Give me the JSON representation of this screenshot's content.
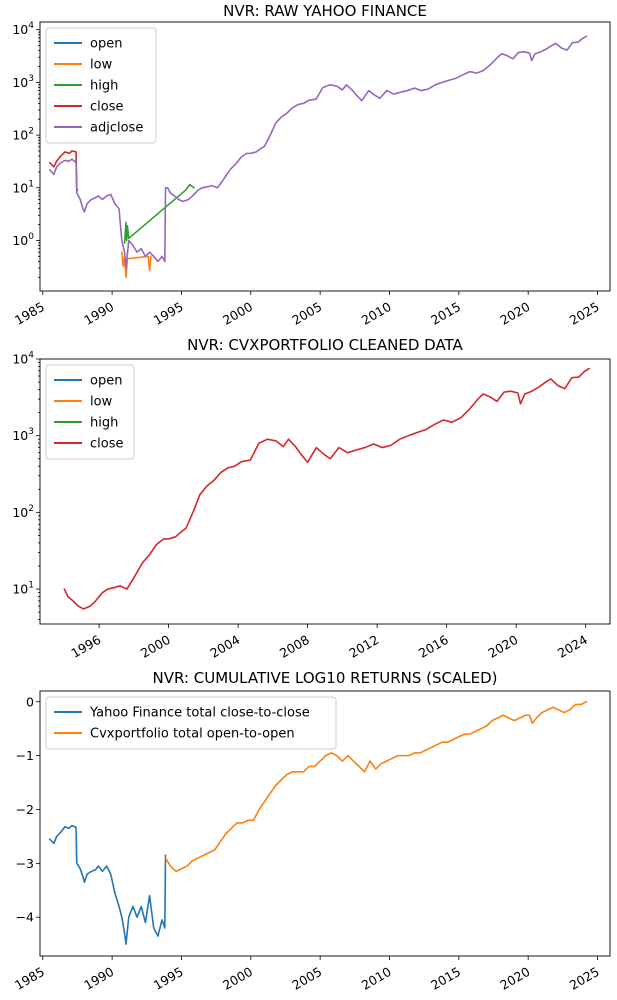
{
  "chart_data": [
    {
      "type": "line",
      "title": "NVR: RAW YAHOO FINANCE",
      "yscale": "log",
      "xlim": [
        1984.8,
        2025.9
      ],
      "ylim": [
        0.11,
        14000
      ],
      "xticks": [
        1985,
        1990,
        1995,
        2000,
        2005,
        2010,
        2015,
        2020,
        2025
      ],
      "xtick_labels": [
        "1985",
        "1990",
        "1995",
        "2000",
        "2005",
        "2010",
        "2015",
        "2020",
        "2025"
      ],
      "yticks": [
        1,
        10,
        100,
        1000,
        10000
      ],
      "ytick_labels": [
        {
          "base": "10",
          "exp": "0"
        },
        {
          "base": "10",
          "exp": "1"
        },
        {
          "base": "10",
          "exp": "2"
        },
        {
          "base": "10",
          "exp": "3"
        },
        {
          "base": "10",
          "exp": "4"
        }
      ],
      "legend": "upper-left",
      "series": [
        {
          "name": "open",
          "color": "#1f77b4"
        },
        {
          "name": "low",
          "color": "#ff7f0e",
          "x": [
            1990.7,
            1990.8,
            1990.9,
            1991.0,
            1991.1,
            1992.6,
            1992.7,
            1992.8
          ],
          "y": [
            0.6,
            0.32,
            0.5,
            0.2,
            0.45,
            0.5,
            0.27,
            0.5
          ]
        },
        {
          "name": "high",
          "color": "#2ca02c",
          "x": [
            1990.9,
            1991.0,
            1991.05,
            1991.1,
            1991.2,
            1995.3,
            1995.6,
            1995.9
          ],
          "y": [
            0.9,
            2.2,
            1.0,
            1.9,
            1.1,
            9.0,
            11.5,
            10.0
          ]
        },
        {
          "name": "close",
          "color": "#d62728",
          "x": [
            1985.5,
            1985.8,
            1986.0,
            1986.3,
            1986.6,
            1986.9,
            1987.1,
            1987.4,
            1987.45,
            1987.5
          ],
          "y": [
            30,
            25,
            32,
            40,
            48,
            45,
            50,
            48,
            10,
            9
          ]
        },
        {
          "name": "adjclose",
          "color": "#9467bd",
          "x": [
            1985.5,
            1985.8,
            1986.0,
            1986.3,
            1986.6,
            1986.9,
            1987.1,
            1987.4,
            1987.45,
            1987.7,
            1987.9,
            1988.0,
            1988.2,
            1988.5,
            1988.8,
            1989.0,
            1989.3,
            1989.6,
            1989.9,
            1990.2,
            1990.5,
            1990.7,
            1990.9,
            1991.0,
            1991.2,
            1991.5,
            1991.8,
            1992.1,
            1992.4,
            1992.7,
            1993.0,
            1993.3,
            1993.6,
            1993.8,
            1993.85,
            1994.0,
            1994.2,
            1994.5,
            1994.8,
            1995.1,
            1995.5,
            1995.8,
            1996.2,
            1996.5,
            1996.9,
            1997.2,
            1997.6,
            1998.0,
            1998.5,
            1998.9,
            1999.3,
            1999.7,
            2000.0,
            2000.4,
            2000.7,
            2001.0,
            2001.4,
            2001.8,
            2002.2,
            2002.6,
            2003.0,
            2003.4,
            2003.8,
            2004.2,
            2004.7,
            2005.2,
            2005.7,
            2006.2,
            2006.6,
            2006.9,
            2007.3,
            2007.6,
            2008.0,
            2008.5,
            2008.9,
            2009.3,
            2009.8,
            2010.3,
            2010.8,
            2011.3,
            2011.8,
            2012.3,
            2012.8,
            2013.3,
            2013.8,
            2014.3,
            2014.8,
            2015.3,
            2015.8,
            2016.3,
            2016.8,
            2017.3,
            2017.8,
            2018.1,
            2018.5,
            2018.9,
            2019.3,
            2019.7,
            2020.1,
            2020.25,
            2020.5,
            2020.9,
            2021.3,
            2021.7,
            2022.0,
            2022.4,
            2022.8,
            2023.2,
            2023.6,
            2023.9,
            2024.2
          ],
          "y": [
            22,
            18,
            25,
            30,
            33,
            32,
            35,
            30,
            8,
            6,
            4,
            3.5,
            5,
            6,
            6.5,
            7,
            6,
            7,
            7.5,
            5,
            4,
            1.0,
            0.6,
            0.3,
            1.0,
            0.8,
            0.6,
            0.7,
            0.5,
            0.6,
            0.5,
            0.4,
            0.5,
            0.4,
            10,
            10,
            8,
            7,
            6,
            5.5,
            6,
            7,
            9,
            10,
            10.5,
            11,
            10,
            14,
            22,
            28,
            38,
            45,
            45,
            48,
            55,
            62,
            100,
            170,
            220,
            260,
            330,
            380,
            400,
            460,
            480,
            800,
            900,
            850,
            720,
            900,
            720,
            580,
            450,
            700,
            580,
            500,
            700,
            600,
            650,
            700,
            780,
            700,
            750,
            900,
            1000,
            1100,
            1200,
            1400,
            1600,
            1500,
            1700,
            2200,
            3000,
            3500,
            3200,
            2800,
            3700,
            3800,
            3600,
            2600,
            3500,
            3800,
            4300,
            5000,
            5500,
            4500,
            4100,
            5700,
            5800,
            6800,
            7500
          ]
        }
      ]
    },
    {
      "type": "line",
      "title": "NVR: CVXPORTFOLIO CLEANED DATA",
      "yscale": "log",
      "xlim": [
        1992.6,
        2025.4
      ],
      "ylim": [
        3.5,
        10000
      ],
      "xticks": [
        1996,
        2000,
        2004,
        2008,
        2012,
        2016,
        2020,
        2024
      ],
      "xtick_labels": [
        "1996",
        "2000",
        "2004",
        "2008",
        "2012",
        "2016",
        "2020",
        "2024"
      ],
      "yticks": [
        10,
        100,
        1000,
        10000
      ],
      "ytick_labels": [
        {
          "base": "10",
          "exp": "1"
        },
        {
          "base": "10",
          "exp": "2"
        },
        {
          "base": "10",
          "exp": "3"
        },
        {
          "base": "10",
          "exp": "4"
        }
      ],
      "legend": "upper-left",
      "series": [
        {
          "name": "open",
          "color": "#1f77b4"
        },
        {
          "name": "low",
          "color": "#ff7f0e"
        },
        {
          "name": "high",
          "color": "#2ca02c"
        },
        {
          "name": "close",
          "color": "#d62728",
          "x": [
            1994.0,
            1994.2,
            1994.5,
            1994.8,
            1995.1,
            1995.5,
            1995.8,
            1996.2,
            1996.5,
            1996.9,
            1997.2,
            1997.6,
            1998.0,
            1998.5,
            1998.9,
            1999.3,
            1999.7,
            2000.0,
            2000.4,
            2000.7,
            2001.0,
            2001.4,
            2001.8,
            2002.2,
            2002.6,
            2003.0,
            2003.4,
            2003.8,
            2004.2,
            2004.7,
            2005.2,
            2005.7,
            2006.2,
            2006.6,
            2006.9,
            2007.3,
            2007.6,
            2008.0,
            2008.5,
            2008.9,
            2009.3,
            2009.8,
            2010.3,
            2010.8,
            2011.3,
            2011.8,
            2012.3,
            2012.8,
            2013.3,
            2013.8,
            2014.3,
            2014.8,
            2015.3,
            2015.8,
            2016.3,
            2016.8,
            2017.3,
            2017.8,
            2018.1,
            2018.5,
            2018.9,
            2019.3,
            2019.7,
            2020.1,
            2020.25,
            2020.5,
            2020.9,
            2021.3,
            2021.7,
            2022.0,
            2022.4,
            2022.8,
            2023.2,
            2023.6,
            2023.9,
            2024.2
          ],
          "y": [
            10,
            8,
            7,
            6,
            5.5,
            6,
            7,
            9,
            10,
            10.5,
            11,
            10,
            14,
            22,
            28,
            38,
            45,
            45,
            48,
            55,
            62,
            100,
            170,
            220,
            260,
            330,
            380,
            400,
            460,
            480,
            800,
            900,
            850,
            720,
            900,
            720,
            580,
            450,
            700,
            580,
            500,
            700,
            600,
            650,
            700,
            780,
            700,
            750,
            900,
            1000,
            1100,
            1200,
            1400,
            1600,
            1500,
            1700,
            2200,
            3000,
            3500,
            3200,
            2800,
            3700,
            3800,
            3600,
            2600,
            3500,
            3800,
            4300,
            5000,
            5500,
            4500,
            4100,
            5700,
            5800,
            6800,
            7500
          ]
        }
      ]
    },
    {
      "type": "line",
      "title": "NVR: CUMULATIVE LOG10 RETURNS (SCALED)",
      "yscale": "linear",
      "xlim": [
        1984.8,
        2025.9
      ],
      "ylim": [
        -4.72,
        0.2
      ],
      "xticks": [
        1985,
        1990,
        1995,
        2000,
        2005,
        2010,
        2015,
        2020,
        2025
      ],
      "xtick_labels": [
        "1985",
        "1990",
        "1995",
        "2000",
        "2005",
        "2010",
        "2015",
        "2020",
        "2025"
      ],
      "yticks": [
        -4,
        -3,
        -2,
        -1,
        0
      ],
      "ytick_labels": [
        "−4",
        "−3",
        "−2",
        "−1",
        "0"
      ],
      "legend": "upper-left",
      "series": [
        {
          "name": "Yahoo Finance total close-to-close",
          "color": "#1f77b4",
          "x": [
            1985.5,
            1985.8,
            1986.0,
            1986.3,
            1986.6,
            1986.9,
            1987.1,
            1987.4,
            1987.45,
            1987.7,
            1987.9,
            1988.0,
            1988.2,
            1988.5,
            1988.8,
            1989.0,
            1989.3,
            1989.6,
            1989.9,
            1990.2,
            1990.5,
            1990.7,
            1990.9,
            1991.0,
            1991.2,
            1991.5,
            1991.8,
            1992.1,
            1992.4,
            1992.7,
            1993.0,
            1993.3,
            1993.6,
            1993.8,
            1993.85
          ],
          "y": [
            -2.55,
            -2.63,
            -2.5,
            -2.42,
            -2.32,
            -2.35,
            -2.3,
            -2.33,
            -3.0,
            -3.1,
            -3.25,
            -3.35,
            -3.2,
            -3.15,
            -3.12,
            -3.05,
            -3.15,
            -3.05,
            -3.2,
            -3.55,
            -3.8,
            -4.0,
            -4.3,
            -4.5,
            -4.0,
            -3.8,
            -4.0,
            -3.8,
            -4.1,
            -3.6,
            -4.2,
            -4.35,
            -4.05,
            -4.2,
            -2.85
          ]
        },
        {
          "name": "Cvxportfolio total open-to-open",
          "color": "#ff7f0e",
          "x": [
            1993.85,
            1994.2,
            1994.6,
            1995.0,
            1995.4,
            1995.8,
            1996.2,
            1996.6,
            1997.0,
            1997.4,
            1997.8,
            1998.2,
            1998.6,
            1999.0,
            1999.4,
            1999.8,
            2000.2,
            2000.6,
            2001.0,
            2001.4,
            2001.8,
            2002.2,
            2002.6,
            2003.0,
            2003.4,
            2003.8,
            2004.2,
            2004.6,
            2005.0,
            2005.4,
            2005.8,
            2006.2,
            2006.6,
            2007.0,
            2007.4,
            2007.8,
            2008.2,
            2008.6,
            2009.0,
            2009.4,
            2009.8,
            2010.2,
            2010.6,
            2011.0,
            2011.4,
            2011.8,
            2012.2,
            2012.6,
            2013.0,
            2013.4,
            2013.8,
            2014.2,
            2014.6,
            2015.0,
            2015.4,
            2015.8,
            2016.2,
            2016.6,
            2017.0,
            2017.4,
            2017.8,
            2018.2,
            2018.6,
            2019.0,
            2019.4,
            2019.8,
            2020.1,
            2020.3,
            2020.6,
            2021.0,
            2021.4,
            2021.8,
            2022.2,
            2022.6,
            2023.0,
            2023.4,
            2023.8,
            2024.2
          ],
          "y": [
            -2.9,
            -3.05,
            -3.15,
            -3.1,
            -3.05,
            -2.95,
            -2.9,
            -2.85,
            -2.8,
            -2.75,
            -2.6,
            -2.45,
            -2.35,
            -2.25,
            -2.25,
            -2.2,
            -2.2,
            -2.0,
            -1.85,
            -1.7,
            -1.55,
            -1.45,
            -1.35,
            -1.3,
            -1.3,
            -1.3,
            -1.2,
            -1.2,
            -1.1,
            -1.0,
            -0.95,
            -1.0,
            -1.1,
            -1.0,
            -1.1,
            -1.2,
            -1.3,
            -1.1,
            -1.25,
            -1.15,
            -1.1,
            -1.05,
            -1.0,
            -1.0,
            -1.0,
            -0.95,
            -0.95,
            -0.9,
            -0.85,
            -0.8,
            -0.75,
            -0.75,
            -0.7,
            -0.65,
            -0.6,
            -0.6,
            -0.55,
            -0.5,
            -0.45,
            -0.35,
            -0.3,
            -0.25,
            -0.3,
            -0.35,
            -0.3,
            -0.25,
            -0.25,
            -0.4,
            -0.3,
            -0.2,
            -0.15,
            -0.1,
            -0.15,
            -0.2,
            -0.15,
            -0.05,
            -0.05,
            0.0
          ]
        }
      ]
    }
  ]
}
